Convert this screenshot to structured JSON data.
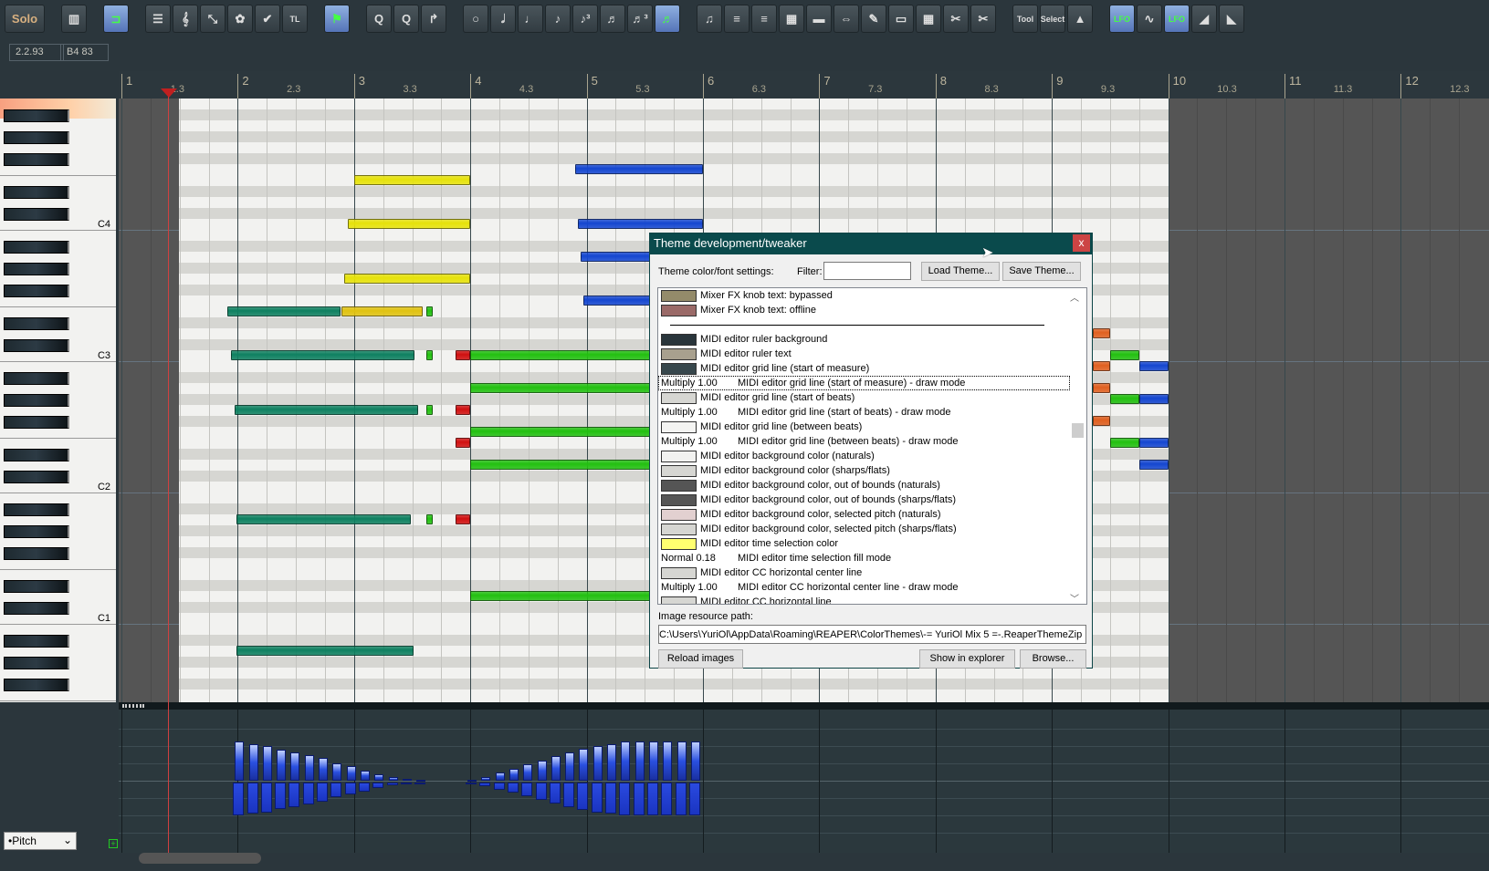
{
  "toolbar": {
    "buttons": [
      {
        "icon": "solo",
        "label": "Solo",
        "w": 44
      },
      {
        "gap": 1
      },
      {
        "icon": "piano-keys-icon",
        "label": "▥"
      },
      {
        "gap": 1
      },
      {
        "icon": "loop-icon",
        "label": "⊐",
        "on": true
      },
      {
        "gap": 1
      },
      {
        "icon": "piano-roll-view-icon",
        "label": "☰"
      },
      {
        "icon": "treble-clef-icon",
        "label": "𝄞"
      },
      {
        "icon": "event-list-icon",
        "label": "⤡"
      },
      {
        "icon": "color-footprint-icon",
        "label": "✿"
      },
      {
        "icon": "color-palette-icon",
        "label": "✔"
      },
      {
        "icon": "tl-icon",
        "label": "TL"
      },
      {
        "gap": 1
      },
      {
        "icon": "step-input-icon",
        "label": "⚑",
        "on": true
      },
      {
        "gap": 1
      },
      {
        "icon": "quantize-icon",
        "label": "Q"
      },
      {
        "icon": "quantize-settings-icon",
        "label": "Q"
      },
      {
        "icon": "humanize-icon",
        "label": "↱"
      },
      {
        "gap": 1
      },
      {
        "icon": "whole-note-icon",
        "label": "○"
      },
      {
        "icon": "half-note-icon",
        "label": "𝅗𝅥"
      },
      {
        "icon": "quarter-note-icon",
        "label": "♩"
      },
      {
        "icon": "eighth-note-icon",
        "label": "♪"
      },
      {
        "icon": "eighth-triplet-icon",
        "label": "♪³"
      },
      {
        "icon": "sixteenth-note-icon",
        "label": "♬"
      },
      {
        "icon": "sixteenth-triplet-icon",
        "label": "♬³"
      },
      {
        "icon": "grid-note-icon",
        "label": "♬",
        "on": true
      },
      {
        "gap": 1
      },
      {
        "icon": "legato-icon",
        "label": "♫"
      },
      {
        "icon": "note-spread-icon",
        "label": "≡"
      },
      {
        "icon": "note-align-icon",
        "label": "≡"
      },
      {
        "icon": "select-grid-icon",
        "label": "▦"
      },
      {
        "icon": "length-icon",
        "label": "▬"
      },
      {
        "icon": "stretch-icon",
        "label": "⇔"
      },
      {
        "icon": "pencil-icon",
        "label": "✎"
      },
      {
        "icon": "razor-icon",
        "label": "▭"
      },
      {
        "icon": "draw-notes-icon",
        "label": "▦"
      },
      {
        "icon": "split-notes-icon",
        "label": "✂"
      },
      {
        "icon": "cut-notes-icon",
        "label": "✂"
      },
      {
        "gap": 1
      },
      {
        "icon": "velocity-tool-icon",
        "label": "Tool"
      },
      {
        "icon": "velocity-select-icon",
        "label": "Select"
      },
      {
        "icon": "velocity-adjust-icon",
        "label": "▲"
      },
      {
        "gap": 1
      },
      {
        "icon": "lfo-icon",
        "label": "LFO",
        "on": true
      },
      {
        "icon": "waveform-icon",
        "label": "∿"
      },
      {
        "icon": "lfo-alt-icon",
        "label": "LFO",
        "on": true
      },
      {
        "icon": "ramp-up-icon",
        "label": "◢"
      },
      {
        "icon": "ramp-down-icon",
        "label": "◣"
      }
    ]
  },
  "info": {
    "position": "2.2.93",
    "note": "B4  83"
  },
  "ruler": {
    "measures": [
      "1",
      "2",
      "3",
      "4",
      "5",
      "6",
      "7",
      "8",
      "9",
      "10",
      "11",
      "12"
    ],
    "beats": [
      "1.3",
      "2.3",
      "3.3",
      "4.3",
      "5.3",
      "6.3",
      "7.3",
      "8.3",
      "9.3",
      "10.3",
      "11.3",
      "12.3"
    ]
  },
  "piano": {
    "labels": {
      "60": "C4",
      "48": "C3",
      "36": "C2",
      "24": "C1"
    },
    "top_pitch": 71
  },
  "colors": {
    "teal": "#0e8060",
    "yellow": "#e6e20a",
    "gold": "#e0c210",
    "green": "#22c010",
    "red": "#d01010",
    "blue": "#1446d0",
    "orange": "#e06020",
    "naturals": "#f2f2f0",
    "sharps": "#d6d6d2",
    "out_of_bounds": "#555555"
  },
  "notes": [
    {
      "p": 64,
      "s": 8,
      "l": 4,
      "c": "yellow"
    },
    {
      "p": 60,
      "s": 7.8,
      "l": 4.2,
      "c": "yellow"
    },
    {
      "p": 55,
      "s": 7.67,
      "l": 4.33,
      "c": "yellow"
    },
    {
      "p": 52,
      "s": 3.65,
      "l": 3.9,
      "c": "teal"
    },
    {
      "p": 52,
      "s": 7.56,
      "l": 2.8,
      "c": "gold"
    },
    {
      "p": 52,
      "s": 10.5,
      "l": 0.2,
      "c": "green"
    },
    {
      "p": 48,
      "s": 3.77,
      "l": 6.3,
      "c": "teal"
    },
    {
      "p": 48,
      "s": 10.5,
      "l": 0.2,
      "c": "green"
    },
    {
      "p": 48,
      "s": 11.5,
      "l": 0.5,
      "c": "red"
    },
    {
      "p": 48,
      "s": 12,
      "l": 8,
      "c": "green"
    },
    {
      "p": 43,
      "s": 3.9,
      "l": 6.3,
      "c": "teal"
    },
    {
      "p": 43,
      "s": 10.5,
      "l": 0.2,
      "c": "green"
    },
    {
      "p": 43,
      "s": 11.5,
      "l": 0.5,
      "c": "red"
    },
    {
      "p": 40,
      "s": 11.5,
      "l": 0.5,
      "c": "red"
    },
    {
      "p": 33,
      "s": 3.95,
      "l": 6.0,
      "c": "teal"
    },
    {
      "p": 33,
      "s": 10.5,
      "l": 0.2,
      "c": "green"
    },
    {
      "p": 33,
      "s": 11.5,
      "l": 0.5,
      "c": "red"
    },
    {
      "p": 21,
      "s": 3.95,
      "l": 6.1,
      "c": "teal"
    },
    {
      "p": 45,
      "s": 12,
      "l": 8,
      "c": "green"
    },
    {
      "p": 41,
      "s": 12,
      "l": 8,
      "c": "green"
    },
    {
      "p": 38,
      "s": 12,
      "l": 8,
      "c": "green"
    },
    {
      "p": 26,
      "s": 12,
      "l": 8,
      "c": "green"
    },
    {
      "p": 65,
      "s": 15.6,
      "l": 4.4,
      "c": "blue"
    },
    {
      "p": 60,
      "s": 15.7,
      "l": 4.3,
      "c": "blue"
    },
    {
      "p": 57,
      "s": 15.8,
      "l": 4.2,
      "c": "blue"
    },
    {
      "p": 53,
      "s": 15.9,
      "l": 4.1,
      "c": "blue"
    },
    {
      "p": 50,
      "s": 33.4,
      "l": 0.6,
      "c": "orange"
    },
    {
      "p": 47,
      "s": 33.4,
      "l": 0.6,
      "c": "orange"
    },
    {
      "p": 45,
      "s": 33.4,
      "l": 0.6,
      "c": "orange"
    },
    {
      "p": 42,
      "s": 33.4,
      "l": 0.6,
      "c": "orange"
    },
    {
      "p": 48,
      "s": 34,
      "l": 1,
      "c": "green"
    },
    {
      "p": 44,
      "s": 34,
      "l": 1,
      "c": "green"
    },
    {
      "p": 40,
      "s": 34,
      "l": 1,
      "c": "green"
    },
    {
      "p": 47,
      "s": 35,
      "l": 1,
      "c": "blue"
    },
    {
      "p": 44,
      "s": 35,
      "l": 1,
      "c": "blue"
    },
    {
      "p": 40,
      "s": 35,
      "l": 1,
      "c": "blue"
    },
    {
      "p": 38,
      "s": 35,
      "l": 1,
      "c": "blue"
    }
  ],
  "cc": {
    "lane": "•Pitch",
    "events": [
      {
        "b": 3.9,
        "v": [
          0.95,
          0.9,
          0.85,
          0.75,
          0.7,
          0.62,
          0.55,
          0.42,
          0.35,
          0.25,
          0.15,
          0.08,
          0.04,
          0.02
        ]
      },
      {
        "b": 11.9,
        "v": [
          0.03,
          0.1,
          0.2,
          0.3,
          0.4,
          0.5,
          0.6,
          0.7,
          0.78,
          0.85,
          0.9,
          0.95,
          0.95,
          0.95,
          0.95,
          0.95,
          0.95
        ]
      }
    ]
  },
  "dialog": {
    "title": "Theme development/tweaker",
    "close": "x",
    "settings_label": "Theme color/font settings:",
    "filter_label": "Filter:",
    "filter_value": "",
    "load": "Load Theme...",
    "save": "Save Theme...",
    "items": [
      {
        "c": "#948b6a",
        "t": "Mixer FX knob text: bypassed"
      },
      {
        "c": "#9a6a68",
        "t": "Mixer FX knob text: offline"
      },
      {
        "sep": true
      },
      {
        "c": "#29353b",
        "t": "MIDI editor ruler background"
      },
      {
        "c": "#a8a08e",
        "t": "MIDI editor ruler text"
      },
      {
        "c": "#37474c",
        "t": "MIDI editor grid line (start of measure)"
      },
      {
        "m": "Multiply 1.00",
        "t": "MIDI editor grid line (start of measure) - draw mode",
        "focus": true
      },
      {
        "c": "#d6d6d2",
        "t": "MIDI editor grid line (start of beats)"
      },
      {
        "m": "Multiply 1.00",
        "t": "MIDI editor grid line (start of beats) - draw mode"
      },
      {
        "c": "#f4f4f2",
        "t": "MIDI editor grid line (between beats)"
      },
      {
        "m": "Multiply 1.00",
        "t": "MIDI editor grid line (between beats) - draw mode"
      },
      {
        "c": "#f2f2f0",
        "t": "MIDI editor background color (naturals)"
      },
      {
        "c": "#d6d6d2",
        "t": "MIDI editor background color (sharps/flats)"
      },
      {
        "c": "#555555",
        "t": "MIDI editor background color, out of bounds (naturals)"
      },
      {
        "c": "#555555",
        "t": "MIDI editor background color, out of bounds (sharps/flats)"
      },
      {
        "c": "#e2d0d0",
        "t": "MIDI editor background color, selected pitch (naturals)"
      },
      {
        "c": "#d6d6d2",
        "t": "MIDI editor background color, selected pitch (sharps/flats)"
      },
      {
        "c": "#ffff70",
        "t": "MIDI editor time selection color"
      },
      {
        "m": "Normal 0.18",
        "t": "MIDI editor time selection fill mode"
      },
      {
        "c": "#d6d6d2",
        "t": "MIDI editor CC horizontal center line"
      },
      {
        "m": "Multiply 1.00",
        "t": "MIDI editor CC horizontal center line - draw mode"
      },
      {
        "c": "#d6d6d2",
        "t": "MIDI editor CC horizontal line"
      }
    ],
    "path_label": "Image resource path:",
    "path_value": "C:\\Users\\YuriOl\\AppData\\Roaming\\REAPER\\ColorThemes\\-= YuriOl Mix 5 =-.ReaperThemeZip",
    "reload": "Reload images",
    "explorer": "Show in explorer",
    "browse": "Browse..."
  }
}
